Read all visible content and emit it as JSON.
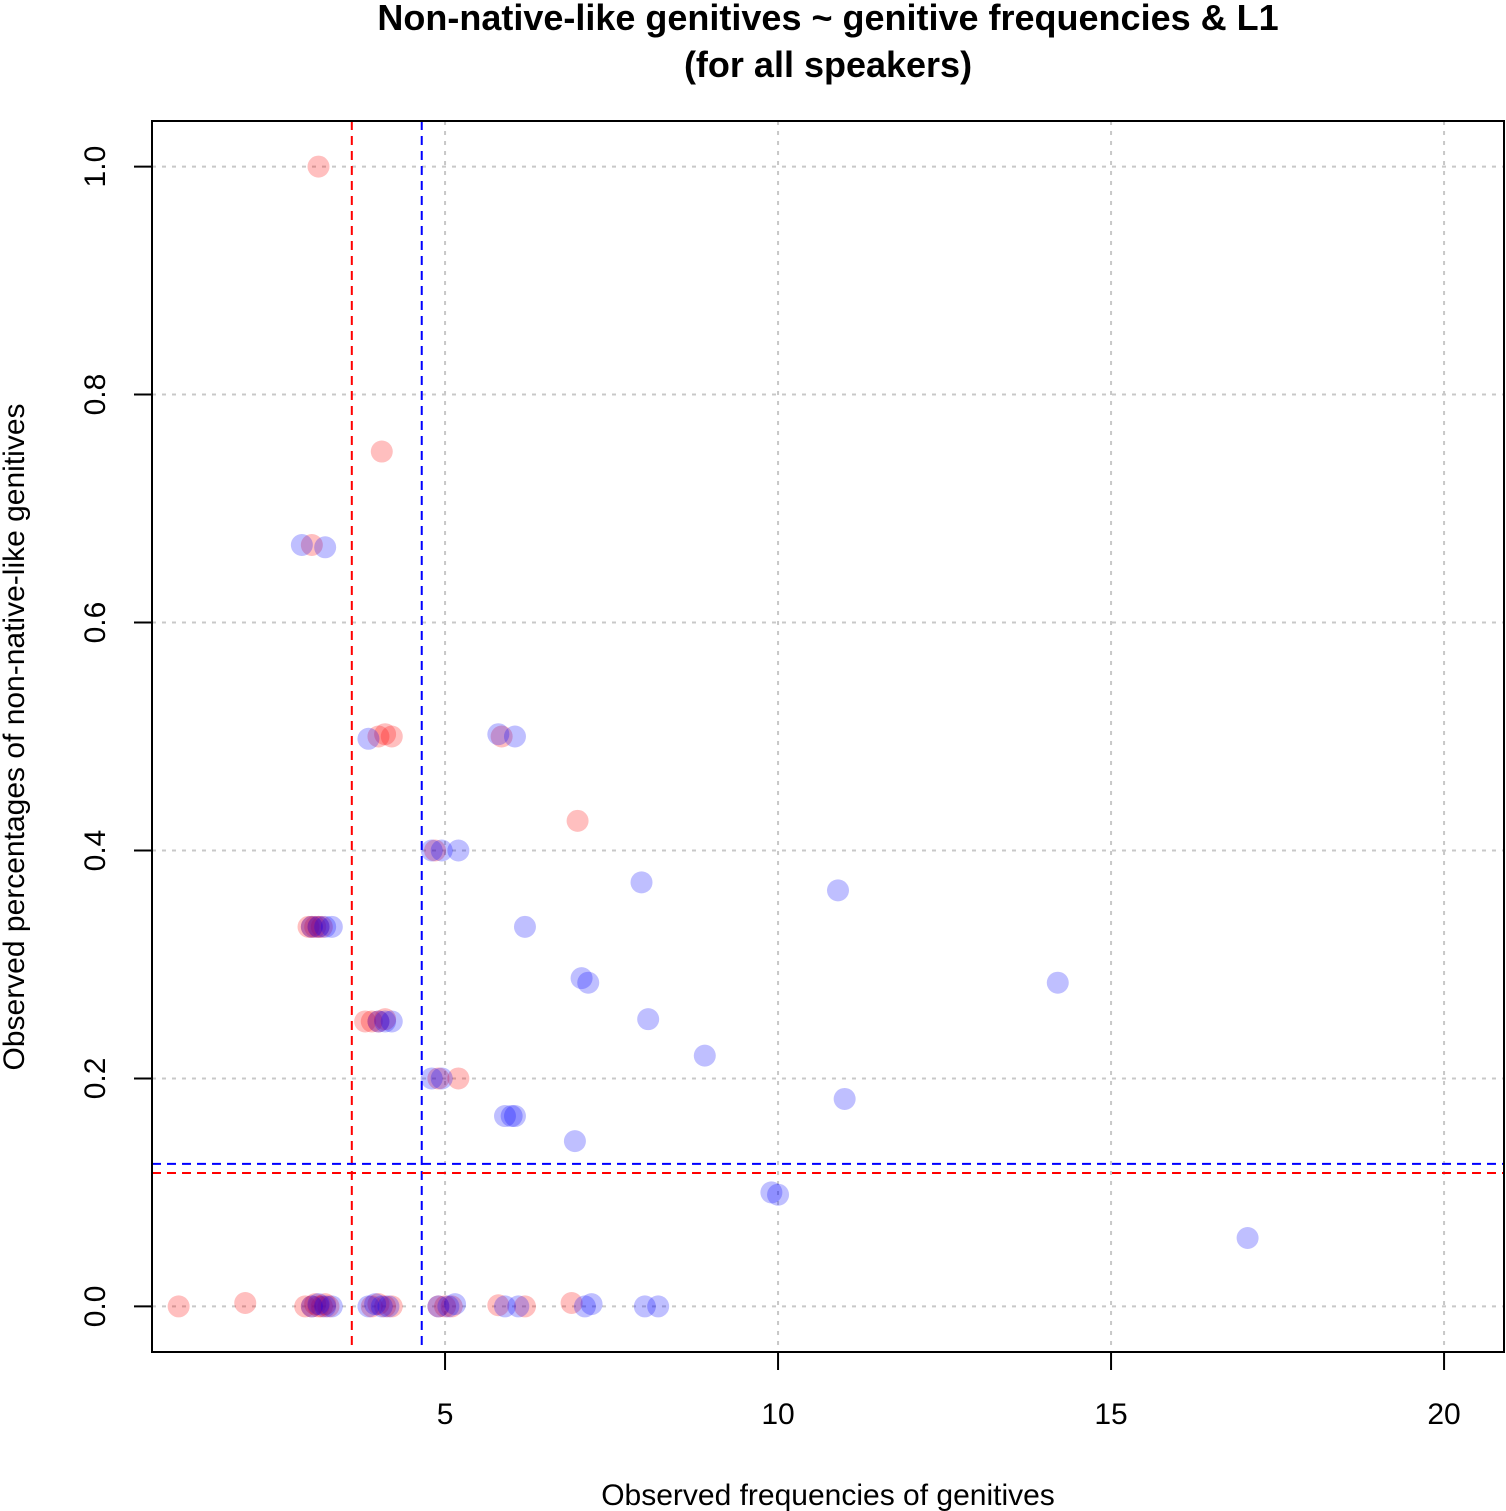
{
  "chart_data": {
    "type": "scatter",
    "title": "Non-native-like genitives ~ genitive frequencies & L1",
    "subtitle": "(for all speakers)",
    "xlabel": "Observed frequencies of genitives",
    "ylabel": "Observed percentages of non-native-like genitives",
    "xlim": [
      0.6,
      20.9
    ],
    "ylim": [
      -0.04,
      1.04
    ],
    "x_ticks": [
      5,
      10,
      15,
      20
    ],
    "y_ticks": [
      0.0,
      0.2,
      0.4,
      0.6,
      0.8,
      1.0
    ],
    "x_tick_labels": [
      "5",
      "10",
      "15",
      "20"
    ],
    "y_tick_labels": [
      "0.0",
      "0.2",
      "0.4",
      "0.6",
      "0.8",
      "1.0"
    ],
    "grid": true,
    "colors": {
      "series_1": "#ff0000",
      "series_2": "#0000ff",
      "grid": "#c8c8c8"
    },
    "reference_lines": [
      {
        "orientation": "vertical",
        "value": 3.6,
        "color": "#ff0000",
        "style": "dashed"
      },
      {
        "orientation": "vertical",
        "value": 4.65,
        "color": "#0000ff",
        "style": "dashed"
      },
      {
        "orientation": "horizontal",
        "value": 0.117,
        "color": "#ff0000",
        "style": "dashed"
      },
      {
        "orientation": "horizontal",
        "value": 0.125,
        "color": "#0000ff",
        "style": "dashed"
      }
    ],
    "series": [
      {
        "color": "#ff0000",
        "points": [
          [
            1.0,
            0.0
          ],
          [
            2.0,
            0.003
          ],
          [
            2.9,
            0.0
          ],
          [
            3.0,
            0.0
          ],
          [
            3.05,
            0.002
          ],
          [
            3.1,
            0.0
          ],
          [
            3.15,
            0.0
          ],
          [
            3.2,
            0.002
          ],
          [
            3.25,
            0.0
          ],
          [
            3.9,
            0.0
          ],
          [
            4.0,
            0.002
          ],
          [
            4.1,
            0.0
          ],
          [
            4.2,
            0.0
          ],
          [
            4.9,
            0.0
          ],
          [
            5.0,
            0.0
          ],
          [
            5.1,
            0.0
          ],
          [
            5.8,
            0.001
          ],
          [
            6.2,
            0.0
          ],
          [
            6.9,
            0.003
          ],
          [
            3.1,
            1.0
          ],
          [
            4.05,
            0.75
          ],
          [
            3.0,
            0.668
          ],
          [
            4.0,
            0.5
          ],
          [
            4.1,
            0.502
          ],
          [
            4.2,
            0.5
          ],
          [
            5.85,
            0.5
          ],
          [
            6.99,
            0.426
          ],
          [
            4.85,
            0.4
          ],
          [
            2.95,
            0.333
          ],
          [
            3.0,
            0.333
          ],
          [
            3.05,
            0.333
          ],
          [
            3.1,
            0.333
          ],
          [
            3.15,
            0.333
          ],
          [
            3.8,
            0.25
          ],
          [
            3.9,
            0.25
          ],
          [
            4.0,
            0.25
          ],
          [
            4.1,
            0.252
          ],
          [
            5.2,
            0.2
          ],
          [
            4.9,
            0.2
          ]
        ]
      },
      {
        "color": "#0000ff",
        "points": [
          [
            3.0,
            0.0
          ],
          [
            3.1,
            0.002
          ],
          [
            3.2,
            0.0
          ],
          [
            3.3,
            0.0
          ],
          [
            3.85,
            0.0
          ],
          [
            3.95,
            0.002
          ],
          [
            4.05,
            0.0
          ],
          [
            4.15,
            0.0
          ],
          [
            4.9,
            0.0
          ],
          [
            5.05,
            0.0
          ],
          [
            5.15,
            0.002
          ],
          [
            5.9,
            0.0
          ],
          [
            6.1,
            0.0
          ],
          [
            7.1,
            0.0
          ],
          [
            7.2,
            0.002
          ],
          [
            8.0,
            0.0
          ],
          [
            8.2,
            0.0
          ],
          [
            2.85,
            0.668
          ],
          [
            3.2,
            0.666
          ],
          [
            3.85,
            0.498
          ],
          [
            5.8,
            0.502
          ],
          [
            6.05,
            0.5
          ],
          [
            4.8,
            0.4
          ],
          [
            4.95,
            0.4
          ],
          [
            5.2,
            0.4
          ],
          [
            7.95,
            0.372
          ],
          [
            10.9,
            0.365
          ],
          [
            6.2,
            0.333
          ],
          [
            3.0,
            0.333
          ],
          [
            3.1,
            0.333
          ],
          [
            3.2,
            0.333
          ],
          [
            3.3,
            0.333
          ],
          [
            7.05,
            0.288
          ],
          [
            7.15,
            0.284
          ],
          [
            14.2,
            0.284
          ],
          [
            8.05,
            0.252
          ],
          [
            4.0,
            0.25
          ],
          [
            4.1,
            0.25
          ],
          [
            4.2,
            0.25
          ],
          [
            8.9,
            0.22
          ],
          [
            4.8,
            0.2
          ],
          [
            4.95,
            0.2
          ],
          [
            11.0,
            0.182
          ],
          [
            5.9,
            0.167
          ],
          [
            6.0,
            0.167
          ],
          [
            6.05,
            0.167
          ],
          [
            6.95,
            0.145
          ],
          [
            9.9,
            0.1
          ],
          [
            10.0,
            0.098
          ],
          [
            17.05,
            0.06
          ]
        ]
      }
    ]
  }
}
